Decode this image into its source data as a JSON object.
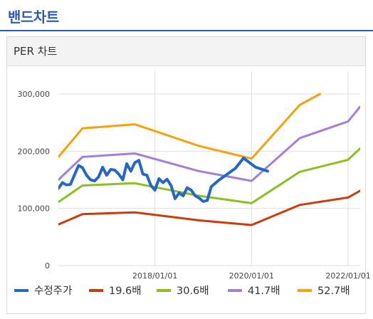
{
  "page": {
    "section_title": "밴드차트"
  },
  "panel": {
    "title": "PER 차트"
  },
  "colors": {
    "price": "#2566c9",
    "band1": "#c93c0c",
    "band2": "#8cc021",
    "band3": "#a57fd6",
    "band4": "#f5a20a",
    "grid": "#dddddd"
  },
  "chart_data": {
    "type": "line",
    "title": "",
    "xlabel": "",
    "ylabel": "",
    "ylim": [
      0,
      300000
    ],
    "y_ticks": [
      0,
      100000,
      200000,
      300000
    ],
    "y_tick_labels": [
      "0",
      "100,000",
      "200,000",
      "300,000"
    ],
    "x_range": [
      "2016/01",
      "2022/04"
    ],
    "x_ticks": [
      "2018/01/01",
      "2020/01/01",
      "2022/01/01"
    ],
    "grid": true,
    "legend_position": "bottom",
    "series": [
      {
        "name": "수정주가",
        "color": "#2566c9",
        "width": 4,
        "points": [
          [
            "2016/01",
            135000
          ],
          [
            "2016/02",
            145000
          ],
          [
            "2016/03",
            141000
          ],
          [
            "2016/04",
            142000
          ],
          [
            "2016/06",
            175000
          ],
          [
            "2016/07",
            171000
          ],
          [
            "2016/08",
            158000
          ],
          [
            "2016/09",
            150000
          ],
          [
            "2016/10",
            148000
          ],
          [
            "2016/11",
            155000
          ],
          [
            "2016/12",
            172000
          ],
          [
            "2017/01",
            158000
          ],
          [
            "2017/02",
            168000
          ],
          [
            "2017/03",
            167000
          ],
          [
            "2017/04",
            160000
          ],
          [
            "2017/05",
            150000
          ],
          [
            "2017/06",
            178000
          ],
          [
            "2017/07",
            165000
          ],
          [
            "2017/08",
            180000
          ],
          [
            "2017/09",
            184000
          ],
          [
            "2017/10",
            160000
          ],
          [
            "2017/11",
            158000
          ],
          [
            "2017/12",
            140000
          ],
          [
            "2018/01",
            132000
          ],
          [
            "2018/02",
            152000
          ],
          [
            "2018/03",
            145000
          ],
          [
            "2018/04",
            151000
          ],
          [
            "2018/05",
            140000
          ],
          [
            "2018/06",
            117000
          ],
          [
            "2018/07",
            127000
          ],
          [
            "2018/08",
            122000
          ],
          [
            "2018/09",
            136000
          ],
          [
            "2018/10",
            132000
          ],
          [
            "2018/11",
            122000
          ],
          [
            "2018/12",
            118000
          ],
          [
            "2019/01",
            112000
          ],
          [
            "2019/02",
            114000
          ],
          [
            "2019/03",
            138000
          ],
          [
            "2019/05",
            150000
          ],
          [
            "2019/07",
            160000
          ],
          [
            "2019/09",
            170000
          ],
          [
            "2019/11",
            188000
          ],
          [
            "2020/02",
            172000
          ],
          [
            "2020/05",
            165000
          ]
        ]
      },
      {
        "name": "19.6배",
        "color": "#c93c0c",
        "width": 3,
        "points": [
          [
            "2016/01",
            72000
          ],
          [
            "2016/07",
            90000
          ],
          [
            "2017/08",
            93000
          ],
          [
            "2018/12",
            79000
          ],
          [
            "2020/01",
            71000
          ],
          [
            "2021/01",
            106000
          ],
          [
            "2022/01",
            119000
          ],
          [
            "2022/04",
            131000
          ]
        ]
      },
      {
        "name": "30.6배",
        "color": "#8cc021",
        "width": 3,
        "points": [
          [
            "2016/01",
            111000
          ],
          [
            "2016/07",
            140000
          ],
          [
            "2017/08",
            144000
          ],
          [
            "2018/12",
            122000
          ],
          [
            "2020/01",
            109000
          ],
          [
            "2021/01",
            164000
          ],
          [
            "2022/01",
            185000
          ],
          [
            "2022/04",
            205000
          ]
        ]
      },
      {
        "name": "41.7배",
        "color": "#a57fd6",
        "width": 3,
        "points": [
          [
            "2016/01",
            150000
          ],
          [
            "2016/07",
            190000
          ],
          [
            "2017/08",
            196000
          ],
          [
            "2018/12",
            165000
          ],
          [
            "2020/01",
            148000
          ],
          [
            "2021/01",
            223000
          ],
          [
            "2022/01",
            252000
          ],
          [
            "2022/04",
            278000
          ]
        ]
      },
      {
        "name": "52.7배",
        "color": "#f5a20a",
        "width": 3,
        "points": [
          [
            "2016/01",
            190000
          ],
          [
            "2016/07",
            240000
          ],
          [
            "2017/08",
            247000
          ],
          [
            "2018/12",
            209000
          ],
          [
            "2020/01",
            187000
          ],
          [
            "2021/01",
            281000
          ],
          [
            "2021/06",
            300000
          ]
        ]
      }
    ]
  }
}
